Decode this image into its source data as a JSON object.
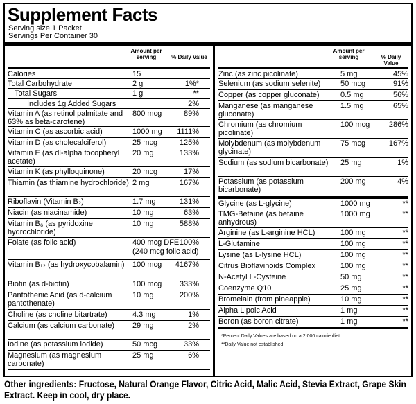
{
  "title": "Supplement Facts",
  "serving_size": "Serving size 1 Packet",
  "servings_per_container": "Servings Per Container 30",
  "header": {
    "amount": "Amount per serving",
    "daily_value": "% Daily Value"
  },
  "left_rows": [
    {
      "name": "Calories",
      "amount": "15",
      "dv": ""
    },
    {
      "name": "Total Carbohydrate",
      "amount": "2 g",
      "dv": "1%*"
    },
    {
      "name": "Total Sugars",
      "amount": "1 g",
      "dv": "**"
    },
    {
      "name": "Includes 1g Added Sugars",
      "amount": "",
      "dv": "2%"
    },
    {
      "name": "Vitamin A (as retinol palmitate and 63% as beta-carotene)",
      "amount": "800 mcg",
      "dv": "89%"
    },
    {
      "name": "Vitamin C (as ascorbic acid)",
      "amount": "1000 mg",
      "dv": "1111%"
    },
    {
      "name": "Vitamin D (as cholecalciferol)",
      "amount": "25 mcg",
      "dv": "125%"
    },
    {
      "name": "Vitamin E (as dl-alpha tocopheryl acetate)",
      "amount": "20 mg",
      "dv": "133%"
    },
    {
      "name": "Vitamin K (as phylloquinone)",
      "amount": "20 mcg",
      "dv": "17%"
    },
    {
      "name": "Thiamin (as thiamine hydrochloride)",
      "amount": "2 mg",
      "dv": "167%"
    },
    {
      "name": "Riboflavin (Vitamin B₂)",
      "amount": "1.7 mg",
      "dv": "131%"
    },
    {
      "name": "Niacin (as niacinamide)",
      "amount": "10 mg",
      "dv": "63%"
    },
    {
      "name": "Vitamin B₆ (as pyridoxine hydrochloride)",
      "amount": "10 mg",
      "dv": "588%"
    },
    {
      "name": "Folate (as folic acid)",
      "amount": "400 mcg DFE",
      "dv": "100%",
      "amount2": "(240 mcg folic acid)"
    },
    {
      "name": "Vitamin B₁₂ (as hydroxycobalamin)",
      "amount": "100 mcg",
      "dv": "4167%"
    },
    {
      "name": "Biotin (as d-biotin)",
      "amount": "100 mcg",
      "dv": "333%"
    },
    {
      "name": "Pantothenic Acid (as d-calcium pantothenate)",
      "amount": "10 mg",
      "dv": "200%"
    },
    {
      "name": "Choline (as choline bitartrate)",
      "amount": "4.3 mg",
      "dv": "1%"
    },
    {
      "name": "Calcium (as calcium carbonate)",
      "amount": "29 mg",
      "dv": "2%"
    },
    {
      "name": "Iodine (as potassium iodide)",
      "amount": "50 mcg",
      "dv": "33%"
    },
    {
      "name": "Magnesium (as magnesium carbonate)",
      "amount": "25 mg",
      "dv": "6%"
    }
  ],
  "right_rows": [
    {
      "name": "Zinc (as zinc picolinate)",
      "amount": "5 mg",
      "dv": "45%"
    },
    {
      "name": "Selenium (as sodium selenite)",
      "amount": "50 mcg",
      "dv": "91%"
    },
    {
      "name": "Copper (as copper gluconate)",
      "amount": "0.5 mg",
      "dv": "56%"
    },
    {
      "name": "Manganese (as manganese gluconate)",
      "amount": "1.5 mg",
      "dv": "65%"
    },
    {
      "name": "Chromium (as chromium picolinate)",
      "amount": "100 mcg",
      "dv": "286%"
    },
    {
      "name": "Molybdenum (as molybdenum glycinate)",
      "amount": "75 mcg",
      "dv": "167%"
    },
    {
      "name": "Sodium (as sodium bicarbonate)",
      "amount": "25 mg",
      "dv": "1%"
    },
    {
      "name": "Potassium (as potassium bicarbonate)",
      "amount": "200 mg",
      "dv": "4%"
    },
    {
      "name": "Glycine (as L-glycine)",
      "amount": "1000 mg",
      "dv": "**"
    },
    {
      "name": "TMG-Betaine (as betaine anhydrous)",
      "amount": "1000 mg",
      "dv": "**"
    },
    {
      "name": "Arginine (as L-arginine HCL)",
      "amount": "100 mg",
      "dv": "**"
    },
    {
      "name": "L-Glutamine",
      "amount": "100 mg",
      "dv": "**"
    },
    {
      "name": "Lysine (as L-lysine HCL)",
      "amount": "100 mg",
      "dv": "**"
    },
    {
      "name": "Citrus Bioflavinoids Complex",
      "amount": "100 mg",
      "dv": "**"
    },
    {
      "name": "N-Acetyl L-Cysteine",
      "amount": "50 mg",
      "dv": "**"
    },
    {
      "name": "Coenzyme Q10",
      "amount": "25 mg",
      "dv": "**"
    },
    {
      "name": "Bromelain (from pineapple)",
      "amount": "10 mg",
      "dv": "**"
    },
    {
      "name": "Alpha Lipoic Acid",
      "amount": "1 mg",
      "dv": "**"
    },
    {
      "name": "Boron (as boron citrate)",
      "amount": "1 mg",
      "dv": "**"
    }
  ],
  "footnotes": [
    "*Percent Daily Values are based on a 2,000 calorie diet.",
    "**Daily Value not established."
  ],
  "other_ingredients": "Other ingredients: Fructose, Natural Orange Flavor, Citric Acid, Malic Acid, Stevia Extract, Grape Skin Extract.  Keep in cool, dry place."
}
